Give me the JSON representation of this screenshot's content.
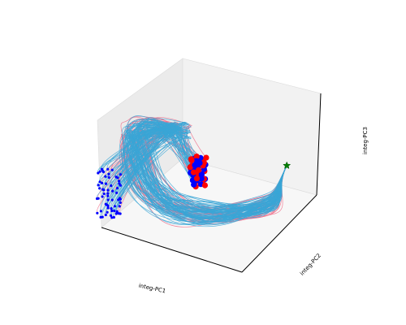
{
  "chart_data": {
    "type": "line",
    "projection": "3d",
    "xlabel": "integ-PC1",
    "ylabel": "integ-PC2",
    "zlabel": "integ-PC3",
    "ticks_shown": false,
    "grid": false,
    "legend": "none",
    "colors": {
      "pane_left": "#ebebeb",
      "pane_back": "#f2f2f2",
      "pane_floor": "#f7f7f7",
      "pane_edge": "#dcdcdc",
      "axis_line": "#000000",
      "series_a": "#ef6f8b",
      "series_b": "#3aa6d6",
      "end_red": "#ff0000",
      "end_blue": "#0000ff",
      "start_marker": "#008000"
    },
    "start_point": {
      "x": 1.0,
      "y": 0.6,
      "z": 0.58,
      "marker": "star"
    },
    "series": [
      {
        "color": "series_a",
        "count": 36
      },
      {
        "color": "series_b",
        "count": 84
      }
    ],
    "cluster_a": {
      "x": 0.55,
      "y": 0.25,
      "z": 0.6
    },
    "cluster_b": {
      "x": 0.05,
      "y": 0.0,
      "z": 0.35
    }
  }
}
